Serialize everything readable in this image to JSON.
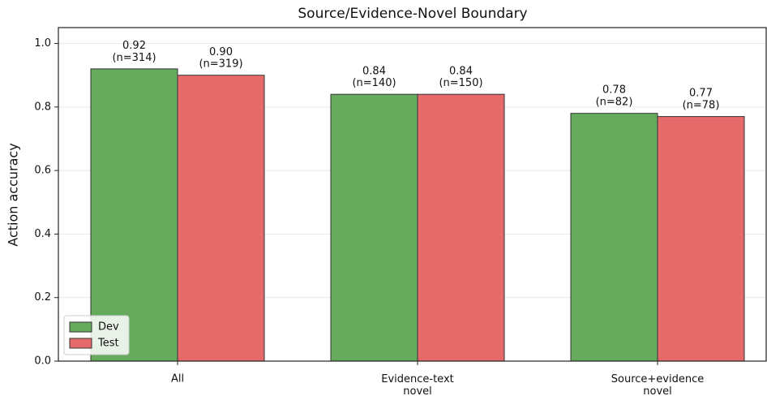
{
  "chart_data": {
    "type": "bar",
    "title": "Source/Evidence-Novel Boundary",
    "y_label": "Action accuracy",
    "categories": [
      "All",
      "Evidence-text\nnovel",
      "Source+evidence\nnovel"
    ],
    "series": [
      {
        "name": "Dev",
        "color": "#66aa5e",
        "values": [
          0.92,
          0.84,
          0.78
        ],
        "value_labels": [
          "0.92\n(n=314)",
          "0.84\n(n=140)",
          "0.78\n(n=82)"
        ]
      },
      {
        "name": "Test",
        "color": "#e66a6a",
        "values": [
          0.9,
          0.84,
          0.77
        ],
        "value_labels": [
          "0.90\n(n=319)",
          "0.84\n(n=150)",
          "0.77\n(n=78)"
        ]
      }
    ],
    "ylim": [
      0,
      1.05
    ],
    "yticks": [
      {
        "value": 0,
        "label": "0.0"
      },
      0.2,
      0.4,
      0.6,
      0.8,
      {
        "value": 1,
        "label": "1.0"
      }
    ],
    "grid": true,
    "legend": "lower left"
  }
}
